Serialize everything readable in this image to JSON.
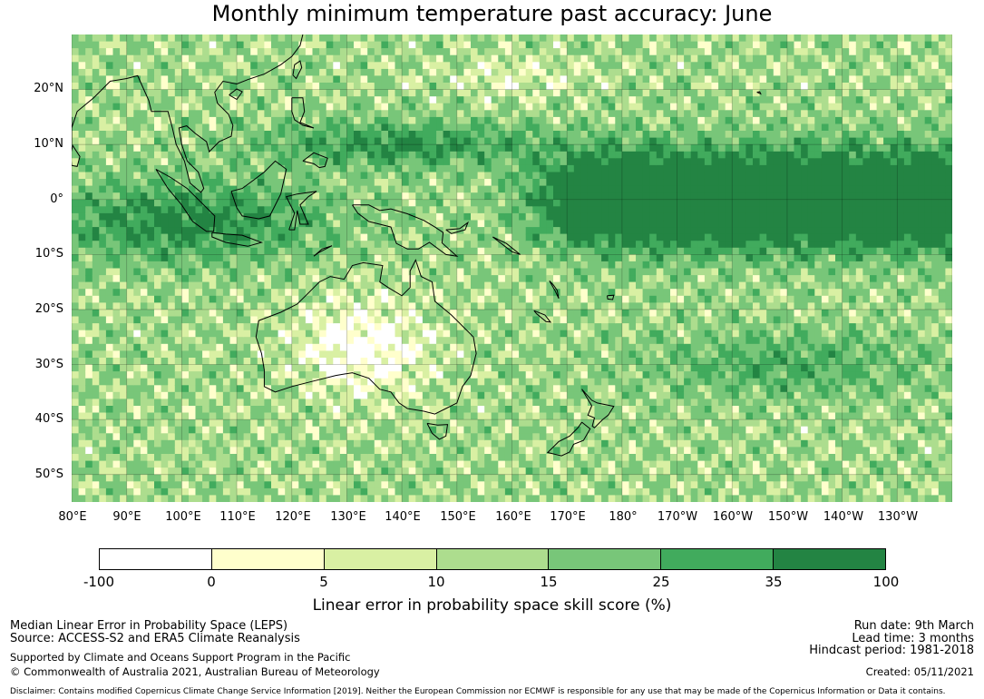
{
  "title": "Monthly minimum temperature past accuracy: June",
  "map": {
    "lat_labels": [
      "20°N",
      "10°N",
      "0°",
      "10°S",
      "20°S",
      "30°S",
      "40°S",
      "50°S"
    ],
    "lon_labels": [
      "80°E",
      "90°E",
      "100°E",
      "110°E",
      "120°E",
      "130°E",
      "140°E",
      "150°E",
      "160°E",
      "170°E",
      "180°",
      "170°W",
      "160°W",
      "150°W",
      "140°W",
      "130°W"
    ],
    "lon_range": [
      80,
      240
    ],
    "lat_range": [
      -55,
      30
    ]
  },
  "colorbar": {
    "ticks": [
      "-100",
      "0",
      "5",
      "10",
      "15",
      "25",
      "35",
      "100"
    ],
    "colors": [
      "#ffffff",
      "#ffffcc",
      "#d9f0a3",
      "#addd8e",
      "#78c679",
      "#41ab5d",
      "#238443"
    ],
    "label": "Linear error in probability space skill score (%)"
  },
  "footer": {
    "left_line1": "Median Linear Error in Probability Space (LEPS)",
    "left_line2": "Source: ACCESS-S2 and ERA5 Climate Reanalysis",
    "left_line3": "Supported by Climate and Oceans Support Program in the Pacific",
    "left_line4": "© Commonwealth of Australia 2021, Australian Bureau of Meteorology",
    "right_line1": "Run date: 9th March",
    "right_line2": "Lead time: 3 months",
    "right_line3": "Hindcast period: 1981-2018",
    "right_line4": "Created: 05/11/2021",
    "disclaimer": "Disclaimer: Contains modified Copernicus Climate Change Service Information [2019]. Neither the European Commission nor ECMWF is responsible for any use that may be made of the Copernicus Information or Data it contains."
  }
}
